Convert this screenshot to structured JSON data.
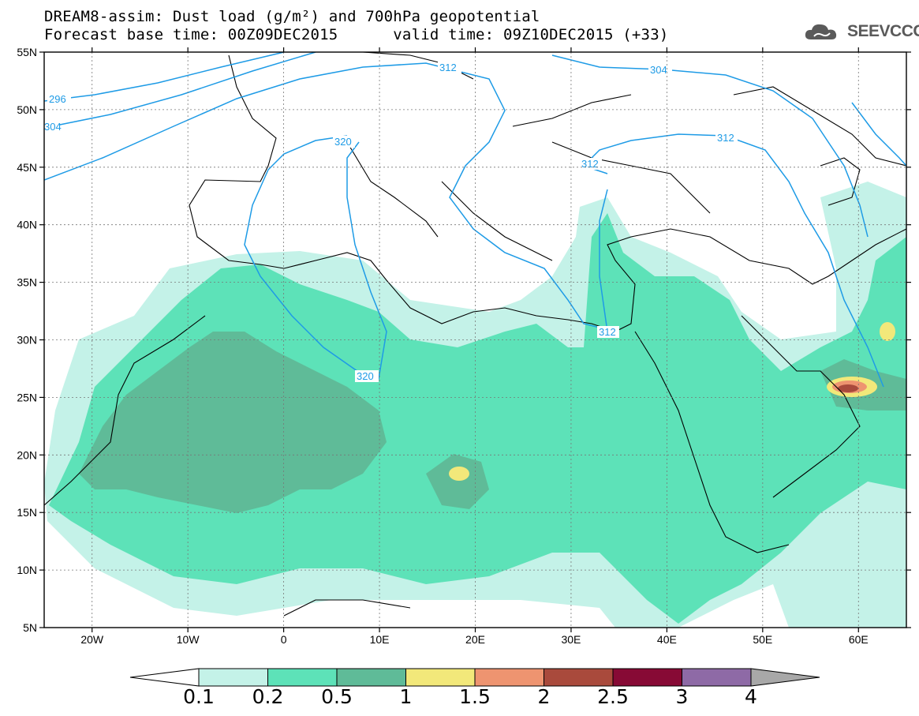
{
  "title": {
    "line1": "DREAM8-assim: Dust load (g/m²) and 700hPa geopotential",
    "line2_base": "Forecast base time: 00Z09DEC2015",
    "line2_valid": "valid time: 09Z10DEC2015 (+33)"
  },
  "logo": {
    "text": "SEEVCCC",
    "icon": "cloud-icon"
  },
  "map": {
    "lon_range": [
      -25,
      65
    ],
    "lat_range": [
      5,
      55
    ],
    "lat_ticks": [
      "55N",
      "50N",
      "45N",
      "40N",
      "35N",
      "30N",
      "25N",
      "20N",
      "15N",
      "10N",
      "5N"
    ],
    "lon_ticks": [
      "20W",
      "10W",
      "0",
      "10E",
      "20E",
      "30E",
      "40E",
      "50E",
      "60E"
    ],
    "contour_labels": [
      "296",
      "304",
      "320",
      "312",
      "312",
      "304",
      "312",
      "312",
      "320"
    ],
    "contour_color": "#1e9be6"
  },
  "colorbar": {
    "levels": [
      "0.1",
      "0.2",
      "0.5",
      "1",
      "1.5",
      "2",
      "2.5",
      "3",
      "4"
    ],
    "colors": [
      "#c4f2e8",
      "#5de2b8",
      "#5fbb98",
      "#f2e87a",
      "#ee9470",
      "#a94a3c",
      "#870a35",
      "#8e6aa6"
    ],
    "under_color": "#ffffff",
    "over_color": "#a8a8a8"
  }
}
